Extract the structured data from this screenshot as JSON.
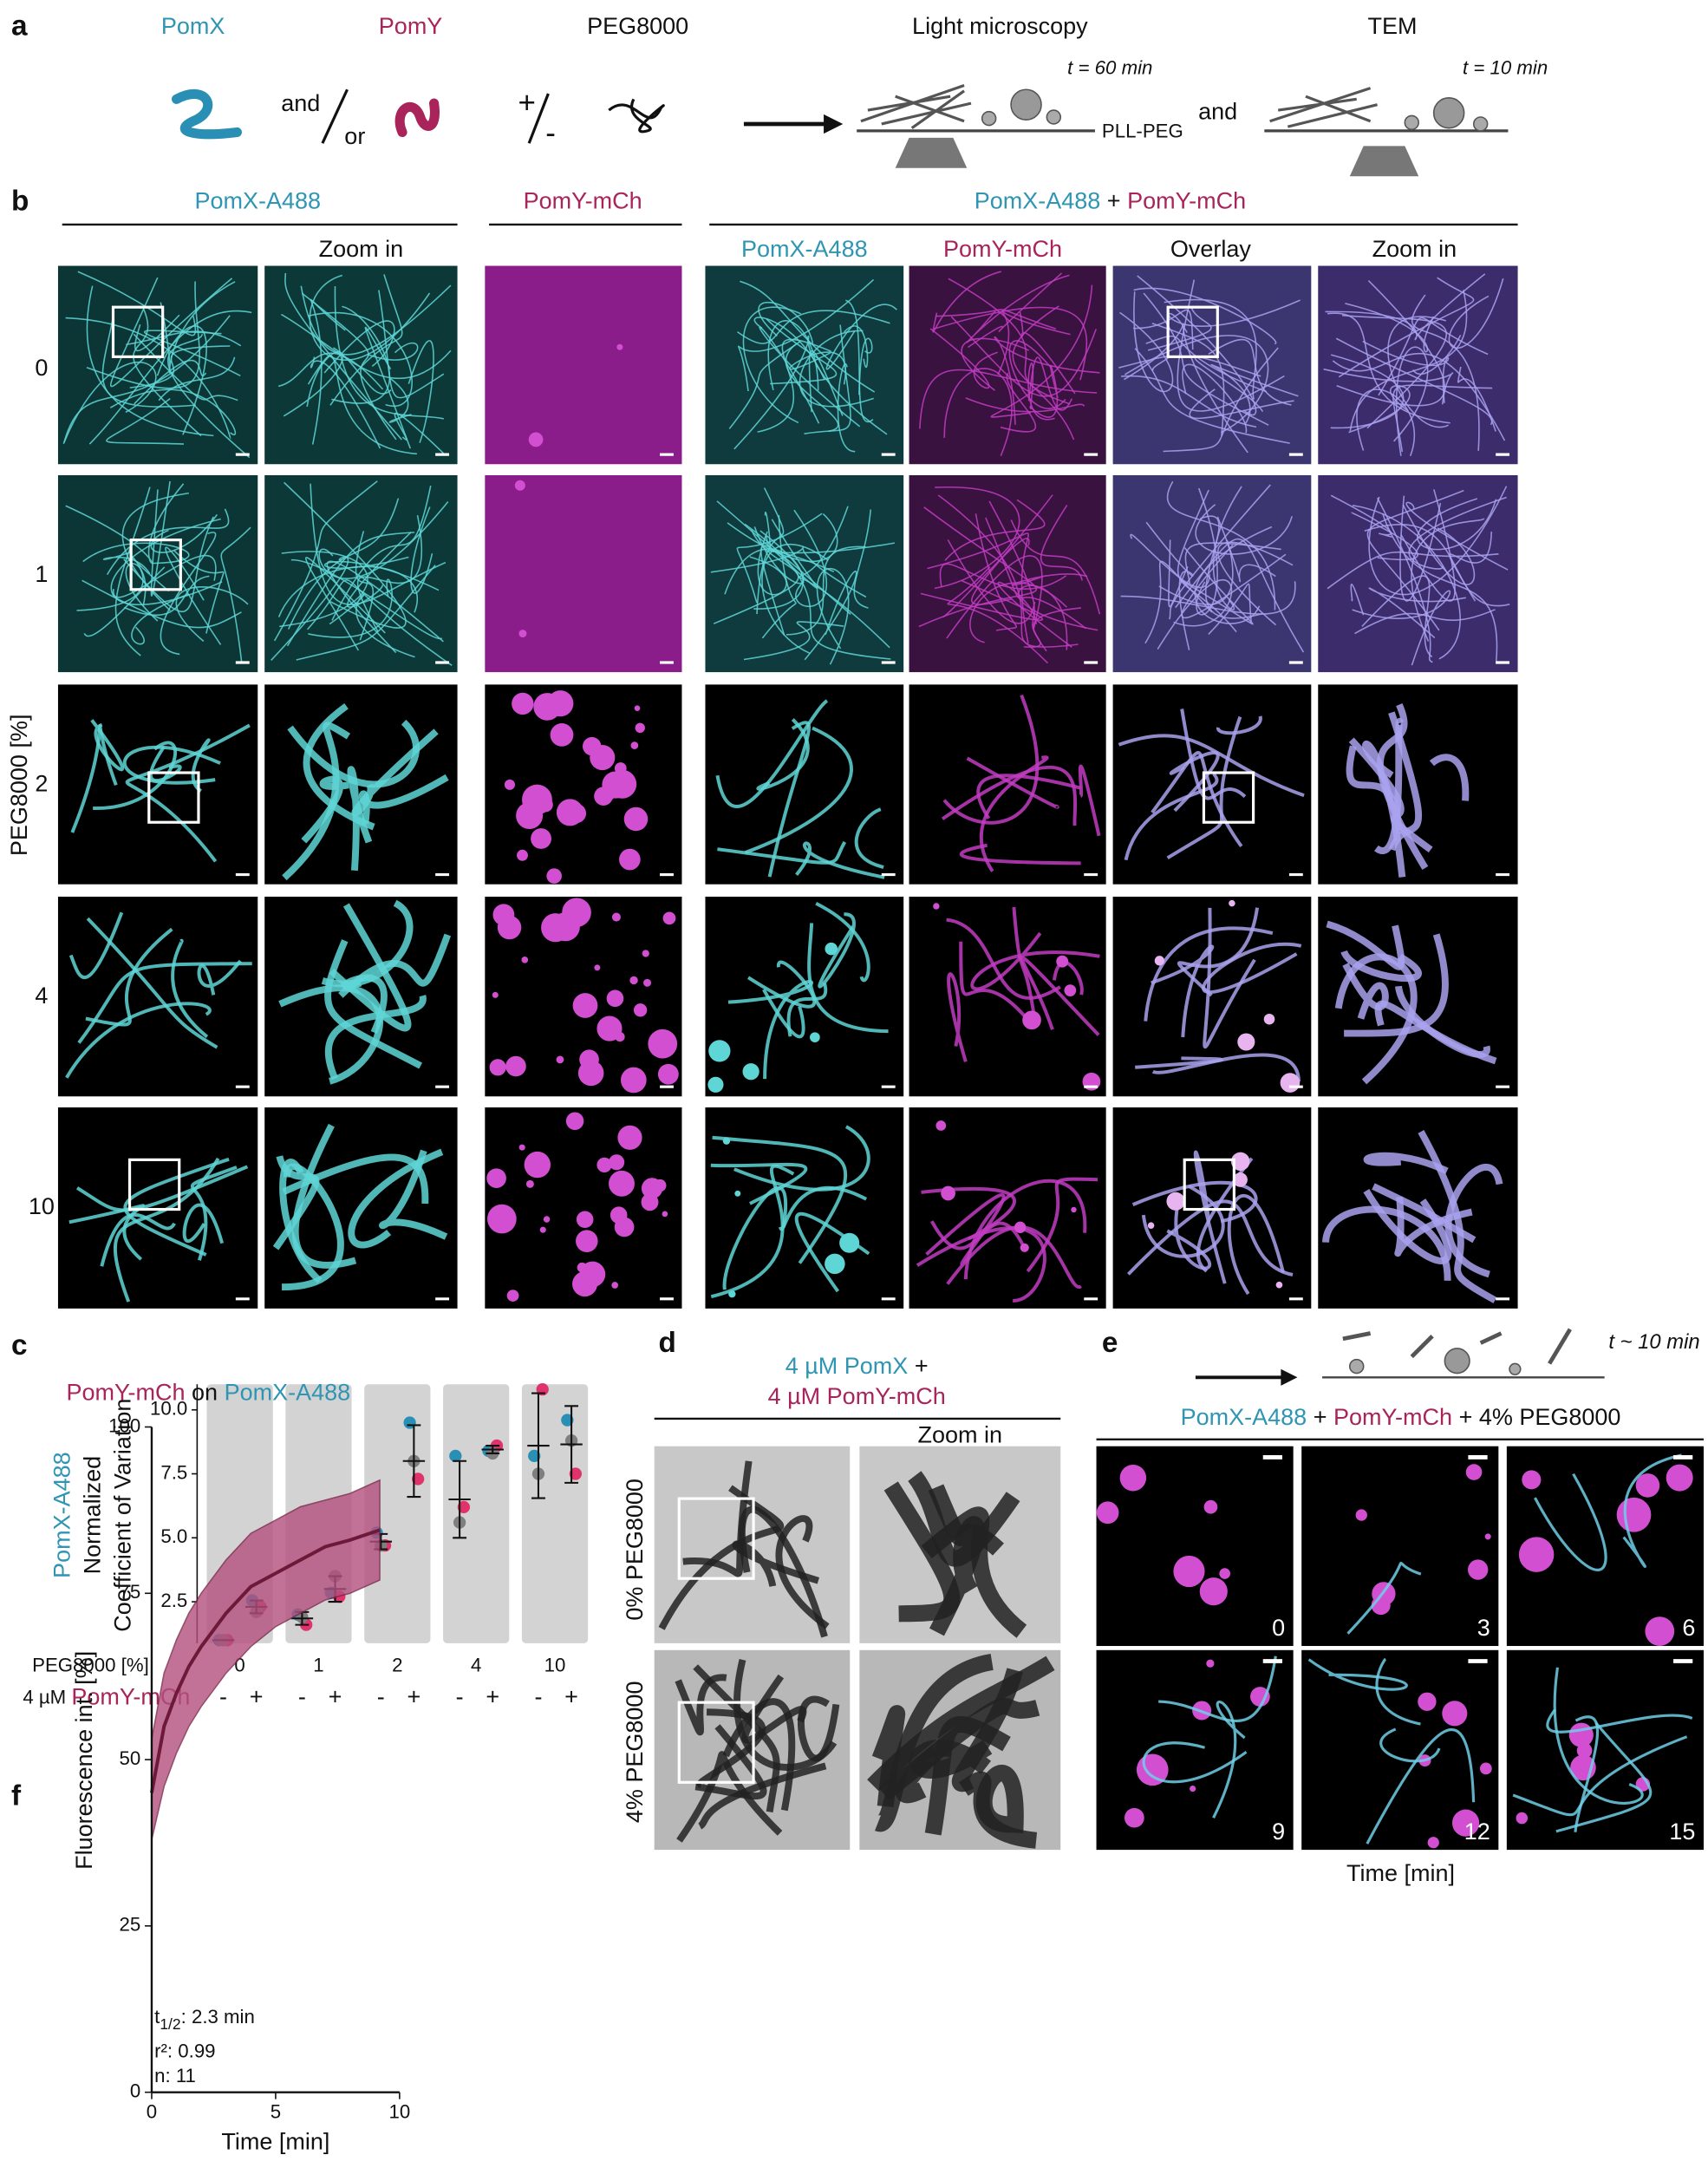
{
  "panel_a": {
    "letter": "a",
    "pomx": "PomX",
    "pomy": "PomY",
    "peg": "PEG8000",
    "and": "and",
    "or": "or",
    "plus": "+",
    "minus": "-",
    "light": "Light microscopy",
    "tem": "TEM",
    "time_lm": "t = 60 min",
    "pll": "PLL-PEG",
    "and2": "and",
    "time_tem": "t = 10 min"
  },
  "panel_b": {
    "letter": "b",
    "header_pomx": "PomX-A488",
    "header_pomy": "PomY-mCh",
    "header_both": [
      "PomX-A488",
      "+",
      "PomY-mCh"
    ],
    "columns": [
      "Zoom in",
      "PomX-A488",
      "PomY-mCh",
      "Overlay",
      "Zoom in"
    ],
    "rows": [
      "0",
      "1",
      "2",
      "4",
      "10"
    ],
    "y_label": "PEG8000 [%]"
  },
  "panel_d": {
    "letter": "d",
    "title": [
      "4 µM PomX",
      "+",
      "4 µM PomY-mCh"
    ],
    "zoom": "Zoom in",
    "rows": [
      "0% PEG8000",
      "4% PEG8000"
    ]
  },
  "panel_e": {
    "letter": "e",
    "time_note": "t ~ 10 min",
    "title": [
      "PomX-A488",
      "+",
      "PomY-mCh",
      "+ 4% PEG8000"
    ],
    "times": [
      "0",
      "3",
      "6",
      "9",
      "12",
      "15"
    ],
    "x_label": "Time [min]"
  },
  "chart_data": [
    {
      "letter": "c",
      "type": "dot",
      "y_label": [
        "PomX-A488",
        "Normalized",
        "Coefficient of Variation"
      ],
      "groups": [
        "0",
        "1",
        "2",
        "4",
        "10"
      ],
      "group_label": "PEG8000 [%]",
      "subgroups": [
        "-",
        "+"
      ],
      "subgroup_label": [
        "4 µM",
        "PomY-mCh"
      ],
      "series": [
        {
          "color": "#2a8fb5",
          "values": [
            1.0,
            2.55,
            2.0,
            2.85,
            5.2,
            9.5,
            8.2,
            8.4,
            8.2,
            9.6
          ]
        },
        {
          "color": "#e0336b",
          "values": [
            1.0,
            2.3,
            1.6,
            2.7,
            4.7,
            7.3,
            6.2,
            8.6,
            10.8,
            7.5
          ]
        },
        {
          "color": "#7f7f7f",
          "values": [
            1.0,
            2.1,
            1.9,
            3.5,
            4.7,
            8.0,
            5.6,
            8.3,
            7.5,
            8.8
          ]
        }
      ],
      "mean": [
        1.0,
        2.3,
        1.85,
        3.0,
        4.85,
        8.0,
        6.5,
        8.45,
        8.6,
        8.65
      ],
      "sd": [
        0,
        0.25,
        0.25,
        0.5,
        0.3,
        1.4,
        1.5,
        0.15,
        2.05,
        1.5
      ],
      "ylim": [
        0.88,
        11.0
      ],
      "yticks": [
        2.5,
        {
          "value": 5,
          "label": "5.0"
        },
        7.5,
        {
          "value": 10,
          "label": "10.0"
        }
      ]
    },
    {
      "letter": "f",
      "type": "line",
      "title": [
        "PomY-mCh",
        "on",
        "PomX-A488"
      ],
      "x": [
        0,
        0.5,
        1,
        1.5,
        2,
        3,
        4,
        5,
        6,
        7,
        8,
        9.2
      ],
      "series": [
        {
          "color": "#6d1a3a",
          "band_color": "#b4507d",
          "values": [
            45,
            55,
            60,
            64,
            67,
            72,
            76,
            78,
            80,
            82,
            83,
            84.5
          ],
          "lower": [
            38,
            46,
            51,
            55,
            58,
            63,
            67,
            70,
            72,
            74,
            75,
            77
          ],
          "upper": [
            53,
            63,
            68,
            72,
            75,
            80,
            84,
            86,
            88,
            89,
            90,
            92
          ]
        }
      ],
      "x_label": "Time [min]",
      "y_label": "Fluorescence int. [%]",
      "xlim": [
        0,
        10
      ],
      "xticks": [
        0,
        5,
        10
      ],
      "ylim": [
        0,
        100
      ],
      "yticks": [
        0,
        25,
        50,
        75,
        100
      ],
      "annotations": [
        "t",
        "1/2",
        ": 2.3 min",
        "r²: 0.99",
        "n: 11"
      ]
    }
  ]
}
